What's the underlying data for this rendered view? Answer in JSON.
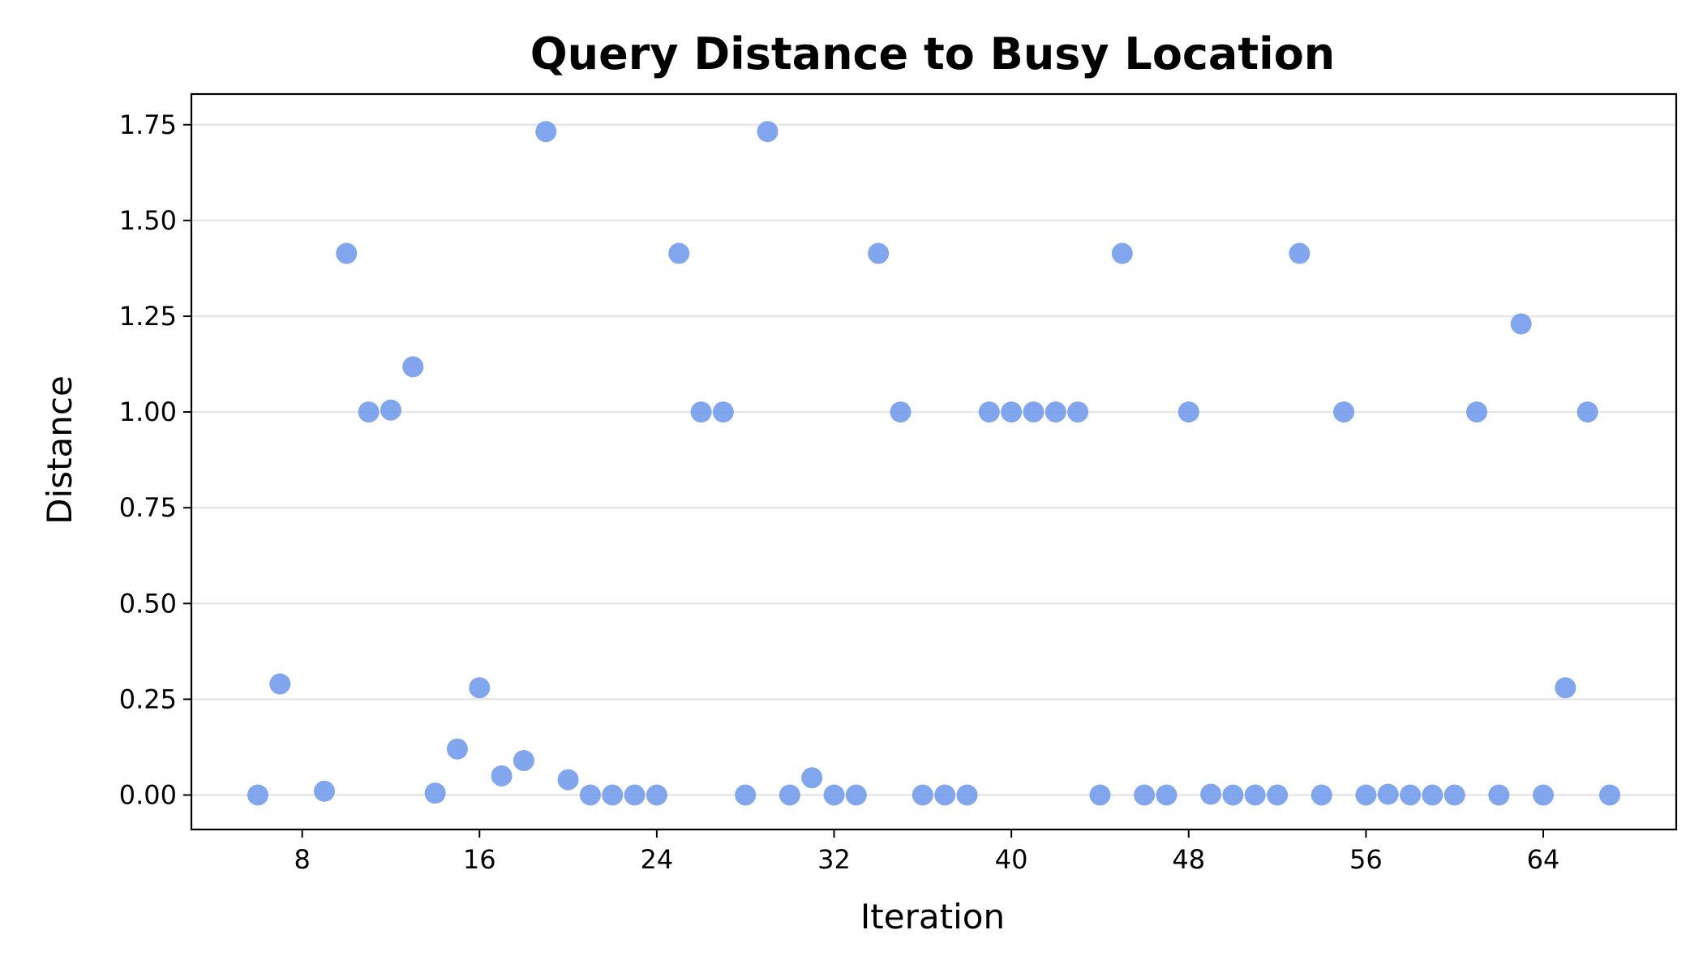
{
  "chart_data": {
    "type": "scatter",
    "title": "Query Distance to Busy Location",
    "xlabel": "Iteration",
    "ylabel": "Distance",
    "xlim": [
      3,
      70
    ],
    "ylim": [
      -0.09,
      1.83
    ],
    "xticks": [
      8,
      16,
      24,
      32,
      40,
      48,
      56,
      64
    ],
    "xtick_labels": [
      "8",
      "16",
      "24",
      "32",
      "40",
      "48",
      "56",
      "64"
    ],
    "yticks": [
      0,
      0.25,
      0.5,
      0.75,
      1.0,
      1.25,
      1.5,
      1.75
    ],
    "ytick_labels": [
      "0.00",
      "0.25",
      "0.50",
      "0.75",
      "1.00",
      "1.25",
      "1.50",
      "1.75"
    ],
    "grid": "horizontal",
    "color": "#6b96ea",
    "x": [
      6,
      7,
      9,
      10,
      11,
      12,
      13,
      14,
      15,
      16,
      17,
      18,
      19,
      20,
      21,
      22,
      23,
      24,
      25,
      26,
      27,
      28,
      29,
      30,
      31,
      32,
      33,
      34,
      35,
      36,
      37,
      38,
      39,
      40,
      41,
      42,
      43,
      44,
      45,
      46,
      47,
      48,
      49,
      50,
      51,
      52,
      53,
      54,
      55,
      56,
      57,
      58,
      59,
      60,
      61,
      62,
      63,
      64,
      65,
      66,
      67
    ],
    "y": [
      0.0,
      0.29,
      0.01,
      1.414,
      1.0,
      1.005,
      1.118,
      0.005,
      0.12,
      0.28,
      0.05,
      0.09,
      1.732,
      0.04,
      0.0,
      0.0,
      0.0,
      0.0,
      1.414,
      1.0,
      1.0,
      0.0,
      1.732,
      0.0,
      0.045,
      0.0,
      0.0,
      1.414,
      1.0,
      0.0,
      0.0,
      0.0,
      1.0,
      1.0,
      1.0,
      1.0,
      1.0,
      0.0,
      1.414,
      0.0,
      0.0,
      1.0,
      0.002,
      0.0,
      0.0,
      0.0,
      1.414,
      0.0,
      1.0,
      0.0,
      0.002,
      0.0,
      0.0,
      0.0,
      1.0,
      0.0,
      1.23,
      0.0,
      0.28,
      1.0,
      0.0
    ]
  }
}
